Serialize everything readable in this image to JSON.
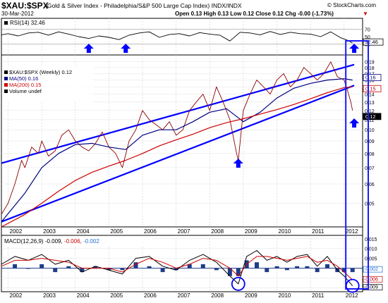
{
  "header": {
    "symbol": "$XAU:$SPX",
    "description": "(Gold & Silver Index - Philadelphia/S&P 500 Large Cap Index) INDX/INDX",
    "brand": "© StockCharts.com",
    "date": "30-Mar-2012",
    "quote": "Open 0.13  High 0.13  Low 0.12  Close 0.12  Chg -0.00 (-1.73%)",
    "quote_arrow": "▼"
  },
  "chart_data": [
    {
      "type": "line",
      "panel": "RSI",
      "title": "RSI(14) 32.46",
      "ylim": [
        0,
        100
      ],
      "yticks": [
        "70",
        "50",
        "30"
      ],
      "current_label": "32.46",
      "guide_lines": [
        70,
        30
      ],
      "series": [
        {
          "name": "RSI(14)",
          "color": "#000000",
          "x": [
            2001.8,
            2002.0,
            2002.3,
            2002.6,
            2002.9,
            2003.2,
            2003.5,
            2003.8,
            2004.1,
            2004.4,
            2004.7,
            2005.0,
            2005.3,
            2005.6,
            2005.9,
            2006.2,
            2006.5,
            2006.8,
            2007.1,
            2007.4,
            2007.7,
            2008.0,
            2008.3,
            2008.6,
            2008.9,
            2009.2,
            2009.5,
            2009.8,
            2010.1,
            2010.4,
            2010.7,
            2011.0,
            2011.3,
            2011.6,
            2011.9,
            2012.1,
            2012.25
          ],
          "values": [
            55,
            58,
            52,
            60,
            62,
            54,
            63,
            57,
            50,
            45,
            52,
            48,
            42,
            54,
            60,
            63,
            48,
            56,
            58,
            52,
            61,
            57,
            54,
            38,
            62,
            60,
            55,
            64,
            56,
            62,
            58,
            57,
            50,
            63,
            47,
            40,
            32.46
          ]
        }
      ]
    },
    {
      "type": "line",
      "panel": "Price (log scale)",
      "title": "$XAU:$SPX (Weekly) 0.12",
      "scale": "log",
      "ylim": [
        0.04,
        0.2
      ],
      "yticks": [
        "0.19",
        "0.18",
        "0.17",
        "0.16",
        "0.15",
        "0.14",
        "0.13",
        "0.12",
        "0.11",
        "0.10",
        "0.09",
        "0.08",
        "0.07",
        "0.06",
        "0.05"
      ],
      "legend": [
        {
          "label": "$XAU:$SPX (Weekly) 0.12",
          "color": "#000000"
        },
        {
          "label": "MA(50) 0.16",
          "color": "#000080"
        },
        {
          "label": "MA(200) 0.15",
          "color": "#cc0000"
        },
        {
          "label": "Volume undef",
          "color": "#000000"
        }
      ],
      "current_labels": [
        {
          "text": "0.16",
          "value": 0.16
        },
        {
          "text": "0.15",
          "value": 0.15
        },
        {
          "text": "0.12",
          "value": 0.12
        }
      ],
      "series": [
        {
          "name": "$XAU:$SPX (Weekly)",
          "color": "#8b0000",
          "x": [
            2001.8,
            2002.0,
            2002.2,
            2002.4,
            2002.5,
            2002.7,
            2002.9,
            2003.0,
            2003.2,
            2003.4,
            2003.6,
            2003.8,
            2004.0,
            2004.2,
            2004.4,
            2004.6,
            2004.8,
            2005.0,
            2005.2,
            2005.4,
            2005.6,
            2005.8,
            2006.0,
            2006.2,
            2006.4,
            2006.6,
            2006.8,
            2007.0,
            2007.2,
            2007.4,
            2007.6,
            2007.8,
            2008.0,
            2008.2,
            2008.4,
            2008.6,
            2008.8,
            2008.85,
            2009.0,
            2009.2,
            2009.4,
            2009.6,
            2009.8,
            2010.0,
            2010.2,
            2010.4,
            2010.6,
            2010.8,
            2011.0,
            2011.2,
            2011.4,
            2011.6,
            2011.8,
            2012.0,
            2012.1,
            2012.2,
            2012.25
          ],
          "values": [
            0.045,
            0.05,
            0.06,
            0.075,
            0.07,
            0.085,
            0.08,
            0.09,
            0.078,
            0.082,
            0.095,
            0.1,
            0.09,
            0.085,
            0.082,
            0.088,
            0.098,
            0.085,
            0.08,
            0.07,
            0.09,
            0.1,
            0.12,
            0.11,
            0.105,
            0.1,
            0.108,
            0.095,
            0.1,
            0.12,
            0.13,
            0.14,
            0.12,
            0.15,
            0.13,
            0.11,
            0.08,
            0.075,
            0.12,
            0.14,
            0.16,
            0.15,
            0.14,
            0.16,
            0.17,
            0.15,
            0.16,
            0.18,
            0.17,
            0.16,
            0.17,
            0.19,
            0.165,
            0.16,
            0.145,
            0.13,
            0.12
          ]
        },
        {
          "name": "MA(50)",
          "color": "#000080",
          "x": [
            2001.8,
            2002.5,
            2003.0,
            2003.5,
            2004.0,
            2004.5,
            2005.0,
            2005.5,
            2006.0,
            2006.5,
            2007.0,
            2007.5,
            2008.0,
            2008.5,
            2009.0,
            2009.5,
            2010.0,
            2010.5,
            2011.0,
            2011.5,
            2012.0,
            2012.25
          ],
          "values": [
            0.042,
            0.055,
            0.07,
            0.08,
            0.087,
            0.088,
            0.085,
            0.083,
            0.095,
            0.1,
            0.1,
            0.108,
            0.118,
            0.122,
            0.108,
            0.118,
            0.135,
            0.148,
            0.155,
            0.16,
            0.162,
            0.16
          ]
        },
        {
          "name": "MA(200)",
          "color": "#cc0000",
          "x": [
            2001.8,
            2002.5,
            2003.0,
            2003.5,
            2004.0,
            2004.5,
            2005.0,
            2005.5,
            2006.0,
            2006.5,
            2007.0,
            2007.5,
            2008.0,
            2008.5,
            2009.0,
            2009.5,
            2010.0,
            2010.5,
            2011.0,
            2011.5,
            2012.0,
            2012.25
          ],
          "values": [
            0.04,
            0.045,
            0.05,
            0.056,
            0.062,
            0.067,
            0.071,
            0.075,
            0.08,
            0.086,
            0.091,
            0.096,
            0.102,
            0.107,
            0.111,
            0.116,
            0.121,
            0.127,
            0.134,
            0.142,
            0.149,
            0.15
          ]
        }
      ],
      "channel_lines": [
        {
          "x": [
            2001.8,
            2012.3
          ],
          "values": [
            0.073,
            0.185
          ]
        },
        {
          "x": [
            2001.8,
            2012.3
          ],
          "values": [
            0.042,
            0.152
          ]
        }
      ]
    },
    {
      "type": "line",
      "panel": "MACD",
      "title": "MACD(12,26,9)",
      "title_values": [
        {
          "text": "-0.009,",
          "color": "#000000"
        },
        {
          "text": "-0.006,",
          "color": "#cc0000"
        },
        {
          "text": "-0.002",
          "color": "#1f6fd6"
        }
      ],
      "ylim": [
        -0.012,
        0.016
      ],
      "yticks": [
        "0.015",
        "0.010",
        "0.005",
        "0.000",
        "-0.005",
        "-0.010"
      ],
      "current_labels": [
        {
          "text": "-0.002",
          "value": -0.002
        },
        {
          "text": "-0.006",
          "value": -0.006
        },
        {
          "text": "-0.009",
          "value": -0.009
        }
      ],
      "series": [
        {
          "name": "MACD",
          "color": "#000000",
          "x": [
            2001.8,
            2002.2,
            2002.6,
            2003.0,
            2003.4,
            2003.8,
            2004.2,
            2004.6,
            2005.0,
            2005.4,
            2005.8,
            2006.2,
            2006.6,
            2007.0,
            2007.4,
            2007.8,
            2008.2,
            2008.6,
            2008.85,
            2009.1,
            2009.4,
            2009.7,
            2010.0,
            2010.3,
            2010.6,
            2010.9,
            2011.2,
            2011.5,
            2011.8,
            2012.0,
            2012.25
          ],
          "values": [
            0.002,
            0.006,
            0.004,
            0.007,
            0.002,
            0.004,
            -0.002,
            0.001,
            -0.001,
            -0.003,
            0.005,
            0.006,
            0.001,
            -0.001,
            0.004,
            0.007,
            0.003,
            -0.004,
            -0.008,
            0.006,
            0.009,
            0.004,
            0.006,
            0.003,
            0.006,
            0.007,
            0.001,
            0.006,
            -0.001,
            -0.004,
            -0.009
          ]
        },
        {
          "name": "Signal",
          "color": "#cc0000",
          "x": [
            2001.8,
            2002.2,
            2002.6,
            2003.0,
            2003.4,
            2003.8,
            2004.2,
            2004.6,
            2005.0,
            2005.4,
            2005.8,
            2006.2,
            2006.6,
            2007.0,
            2007.4,
            2007.8,
            2008.2,
            2008.6,
            2008.85,
            2009.1,
            2009.4,
            2009.7,
            2010.0,
            2010.3,
            2010.6,
            2010.9,
            2011.2,
            2011.5,
            2011.8,
            2012.0,
            2012.25
          ],
          "values": [
            0.001,
            0.004,
            0.004,
            0.005,
            0.004,
            0.003,
            0.0,
            0.0,
            0.0,
            -0.002,
            0.002,
            0.005,
            0.003,
            0.0,
            0.002,
            0.005,
            0.004,
            0.0,
            -0.004,
            0.002,
            0.006,
            0.006,
            0.005,
            0.004,
            0.005,
            0.006,
            0.003,
            0.004,
            0.001,
            -0.002,
            -0.006
          ]
        }
      ],
      "histogram": {
        "name": "Histogram",
        "color": "#1f3c88",
        "x": [
          2002.2,
          2002.6,
          2003.0,
          2003.4,
          2003.8,
          2004.2,
          2004.6,
          2005.0,
          2005.4,
          2005.8,
          2006.2,
          2006.6,
          2007.0,
          2007.4,
          2007.8,
          2008.2,
          2008.6,
          2008.85,
          2009.1,
          2009.4,
          2009.7,
          2010.0,
          2010.3,
          2010.6,
          2010.9,
          2011.2,
          2011.5,
          2011.8,
          2012.0,
          2012.25
        ],
        "values": [
          0.002,
          0.0,
          0.002,
          -0.002,
          0.001,
          -0.002,
          0.001,
          -0.001,
          -0.001,
          0.003,
          0.001,
          -0.002,
          -0.001,
          0.002,
          0.002,
          -0.001,
          -0.004,
          -0.004,
          0.004,
          0.003,
          -0.002,
          0.001,
          -0.001,
          0.001,
          0.001,
          -0.002,
          0.002,
          -0.002,
          -0.002,
          -0.002
        ]
      }
    }
  ],
  "x_axis": {
    "labels": [
      "2002",
      "2003",
      "2004",
      "2005",
      "2006",
      "2007",
      "2008",
      "2009",
      "2010",
      "2011",
      "2012"
    ],
    "range": [
      2001.8,
      2012.55
    ]
  },
  "annotations": {
    "arrow_color": "#0000ff",
    "highlight_color": "#1a1aff"
  }
}
